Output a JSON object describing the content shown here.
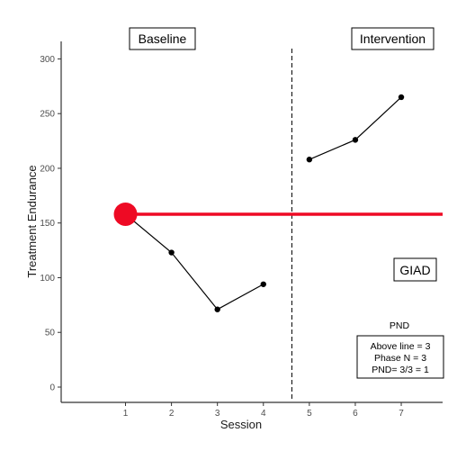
{
  "chart_data": {
    "type": "line",
    "xlabel": "Session",
    "ylabel": "Treatment Endurance",
    "x_ticks": [
      1,
      2,
      3,
      4,
      5,
      6,
      7
    ],
    "y_ticks": [
      0,
      50,
      100,
      150,
      200,
      250,
      300
    ],
    "xlim": [
      -0.4,
      7.9
    ],
    "ylim": [
      -14,
      316
    ],
    "grid": false,
    "series": [
      {
        "phase": "baseline",
        "x": [
          1,
          2,
          3,
          4
        ],
        "y": [
          158,
          123,
          71,
          94
        ]
      },
      {
        "phase": "intervention",
        "x": [
          5,
          6,
          7
        ],
        "y": [
          208,
          226,
          265
        ]
      }
    ],
    "highlight_point": {
      "x": 1,
      "y": 158,
      "color": "#ee0a24"
    },
    "reference_line": {
      "y": 158,
      "x_start": 1,
      "color": "#ee0a24"
    },
    "phase_change_x": 4.62,
    "annotations": {
      "baseline_label": "Baseline",
      "intervention_label": "Intervention",
      "participant_label": "GIAD",
      "pnd_title": "PND",
      "pnd_lines": [
        "Above line = 3",
        "Phase N = 3",
        "PND= 3/3 = 1"
      ]
    }
  }
}
